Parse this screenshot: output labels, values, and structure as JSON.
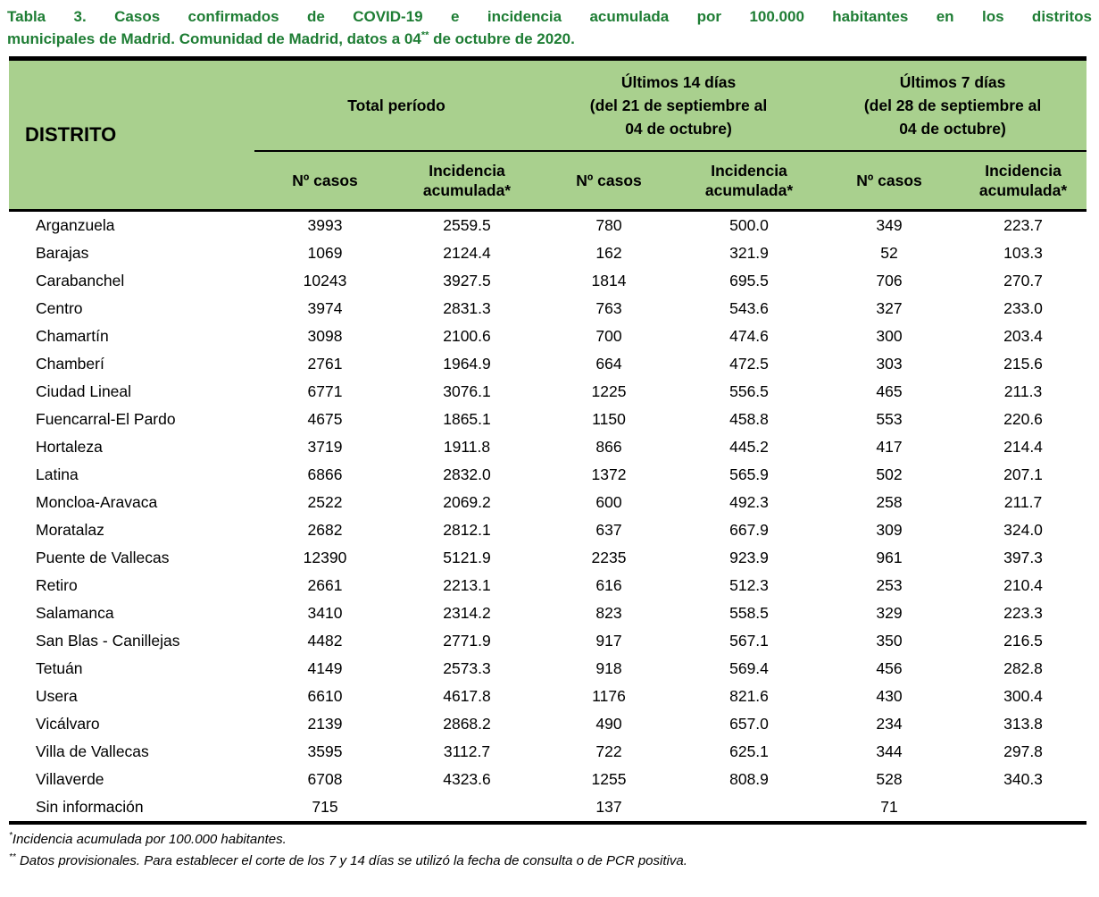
{
  "colors": {
    "title_green": "#1E7D34",
    "header_bg": "#A9D08E",
    "border": "#000000"
  },
  "title": {
    "line1": "Tabla 3. Casos confirmados de COVID-19 e incidencia acumulada por 100.000 habitantes en los distritos",
    "line2_pre": "municipales de Madrid. Comunidad de Madrid, datos a 04",
    "line2_sup": "**",
    "line2_post": " de octubre de 2020."
  },
  "table": {
    "district_header": "DISTRITO",
    "groups": [
      {
        "lines": [
          "Total período"
        ]
      },
      {
        "lines": [
          "Últimos 14 días",
          "(del 21 de septiembre al",
          "04 de octubre)"
        ]
      },
      {
        "lines": [
          "Últimos 7 días",
          "(del 28 de septiembre al",
          "04 de octubre)"
        ]
      }
    ],
    "subheaders": [
      "Nº casos",
      "Incidencia acumulada*",
      "Nº casos",
      "Incidencia acumulada*",
      "Nº casos",
      "Incidencia acumulada*"
    ],
    "rows": [
      [
        "Arganzuela",
        "3993",
        "2559.5",
        "780",
        "500.0",
        "349",
        "223.7"
      ],
      [
        "Barajas",
        "1069",
        "2124.4",
        "162",
        "321.9",
        "52",
        "103.3"
      ],
      [
        "Carabanchel",
        "10243",
        "3927.5",
        "1814",
        "695.5",
        "706",
        "270.7"
      ],
      [
        "Centro",
        "3974",
        "2831.3",
        "763",
        "543.6",
        "327",
        "233.0"
      ],
      [
        "Chamartín",
        "3098",
        "2100.6",
        "700",
        "474.6",
        "300",
        "203.4"
      ],
      [
        "Chamberí",
        "2761",
        "1964.9",
        "664",
        "472.5",
        "303",
        "215.6"
      ],
      [
        "Ciudad Lineal",
        "6771",
        "3076.1",
        "1225",
        "556.5",
        "465",
        "211.3"
      ],
      [
        "Fuencarral-El Pardo",
        "4675",
        "1865.1",
        "1150",
        "458.8",
        "553",
        "220.6"
      ],
      [
        "Hortaleza",
        "3719",
        "1911.8",
        "866",
        "445.2",
        "417",
        "214.4"
      ],
      [
        "Latina",
        "6866",
        "2832.0",
        "1372",
        "565.9",
        "502",
        "207.1"
      ],
      [
        "Moncloa-Aravaca",
        "2522",
        "2069.2",
        "600",
        "492.3",
        "258",
        "211.7"
      ],
      [
        "Moratalaz",
        "2682",
        "2812.1",
        "637",
        "667.9",
        "309",
        "324.0"
      ],
      [
        "Puente de Vallecas",
        "12390",
        "5121.9",
        "2235",
        "923.9",
        "961",
        "397.3"
      ],
      [
        "Retiro",
        "2661",
        "2213.1",
        "616",
        "512.3",
        "253",
        "210.4"
      ],
      [
        "Salamanca",
        "3410",
        "2314.2",
        "823",
        "558.5",
        "329",
        "223.3"
      ],
      [
        "San Blas - Canillejas",
        "4482",
        "2771.9",
        "917",
        "567.1",
        "350",
        "216.5"
      ],
      [
        "Tetuán",
        "4149",
        "2573.3",
        "918",
        "569.4",
        "456",
        "282.8"
      ],
      [
        "Usera",
        "6610",
        "4617.8",
        "1176",
        "821.6",
        "430",
        "300.4"
      ],
      [
        "Vicálvaro",
        "2139",
        "2868.2",
        "490",
        "657.0",
        "234",
        "313.8"
      ],
      [
        "Villa de Vallecas",
        "3595",
        "3112.7",
        "722",
        "625.1",
        "344",
        "297.8"
      ],
      [
        "Villaverde",
        "6708",
        "4323.6",
        "1255",
        "808.9",
        "528",
        "340.3"
      ],
      [
        "Sin información",
        "715",
        "",
        "137",
        "",
        "71",
        ""
      ]
    ]
  },
  "footnotes": [
    {
      "sup": "*",
      "text": "Incidencia acumulada por 100.000 habitantes."
    },
    {
      "sup": "**",
      "text": " Datos provisionales. Para establecer el corte de los 7 y 14 días se utilizó la fecha de consulta o de PCR positiva."
    }
  ]
}
